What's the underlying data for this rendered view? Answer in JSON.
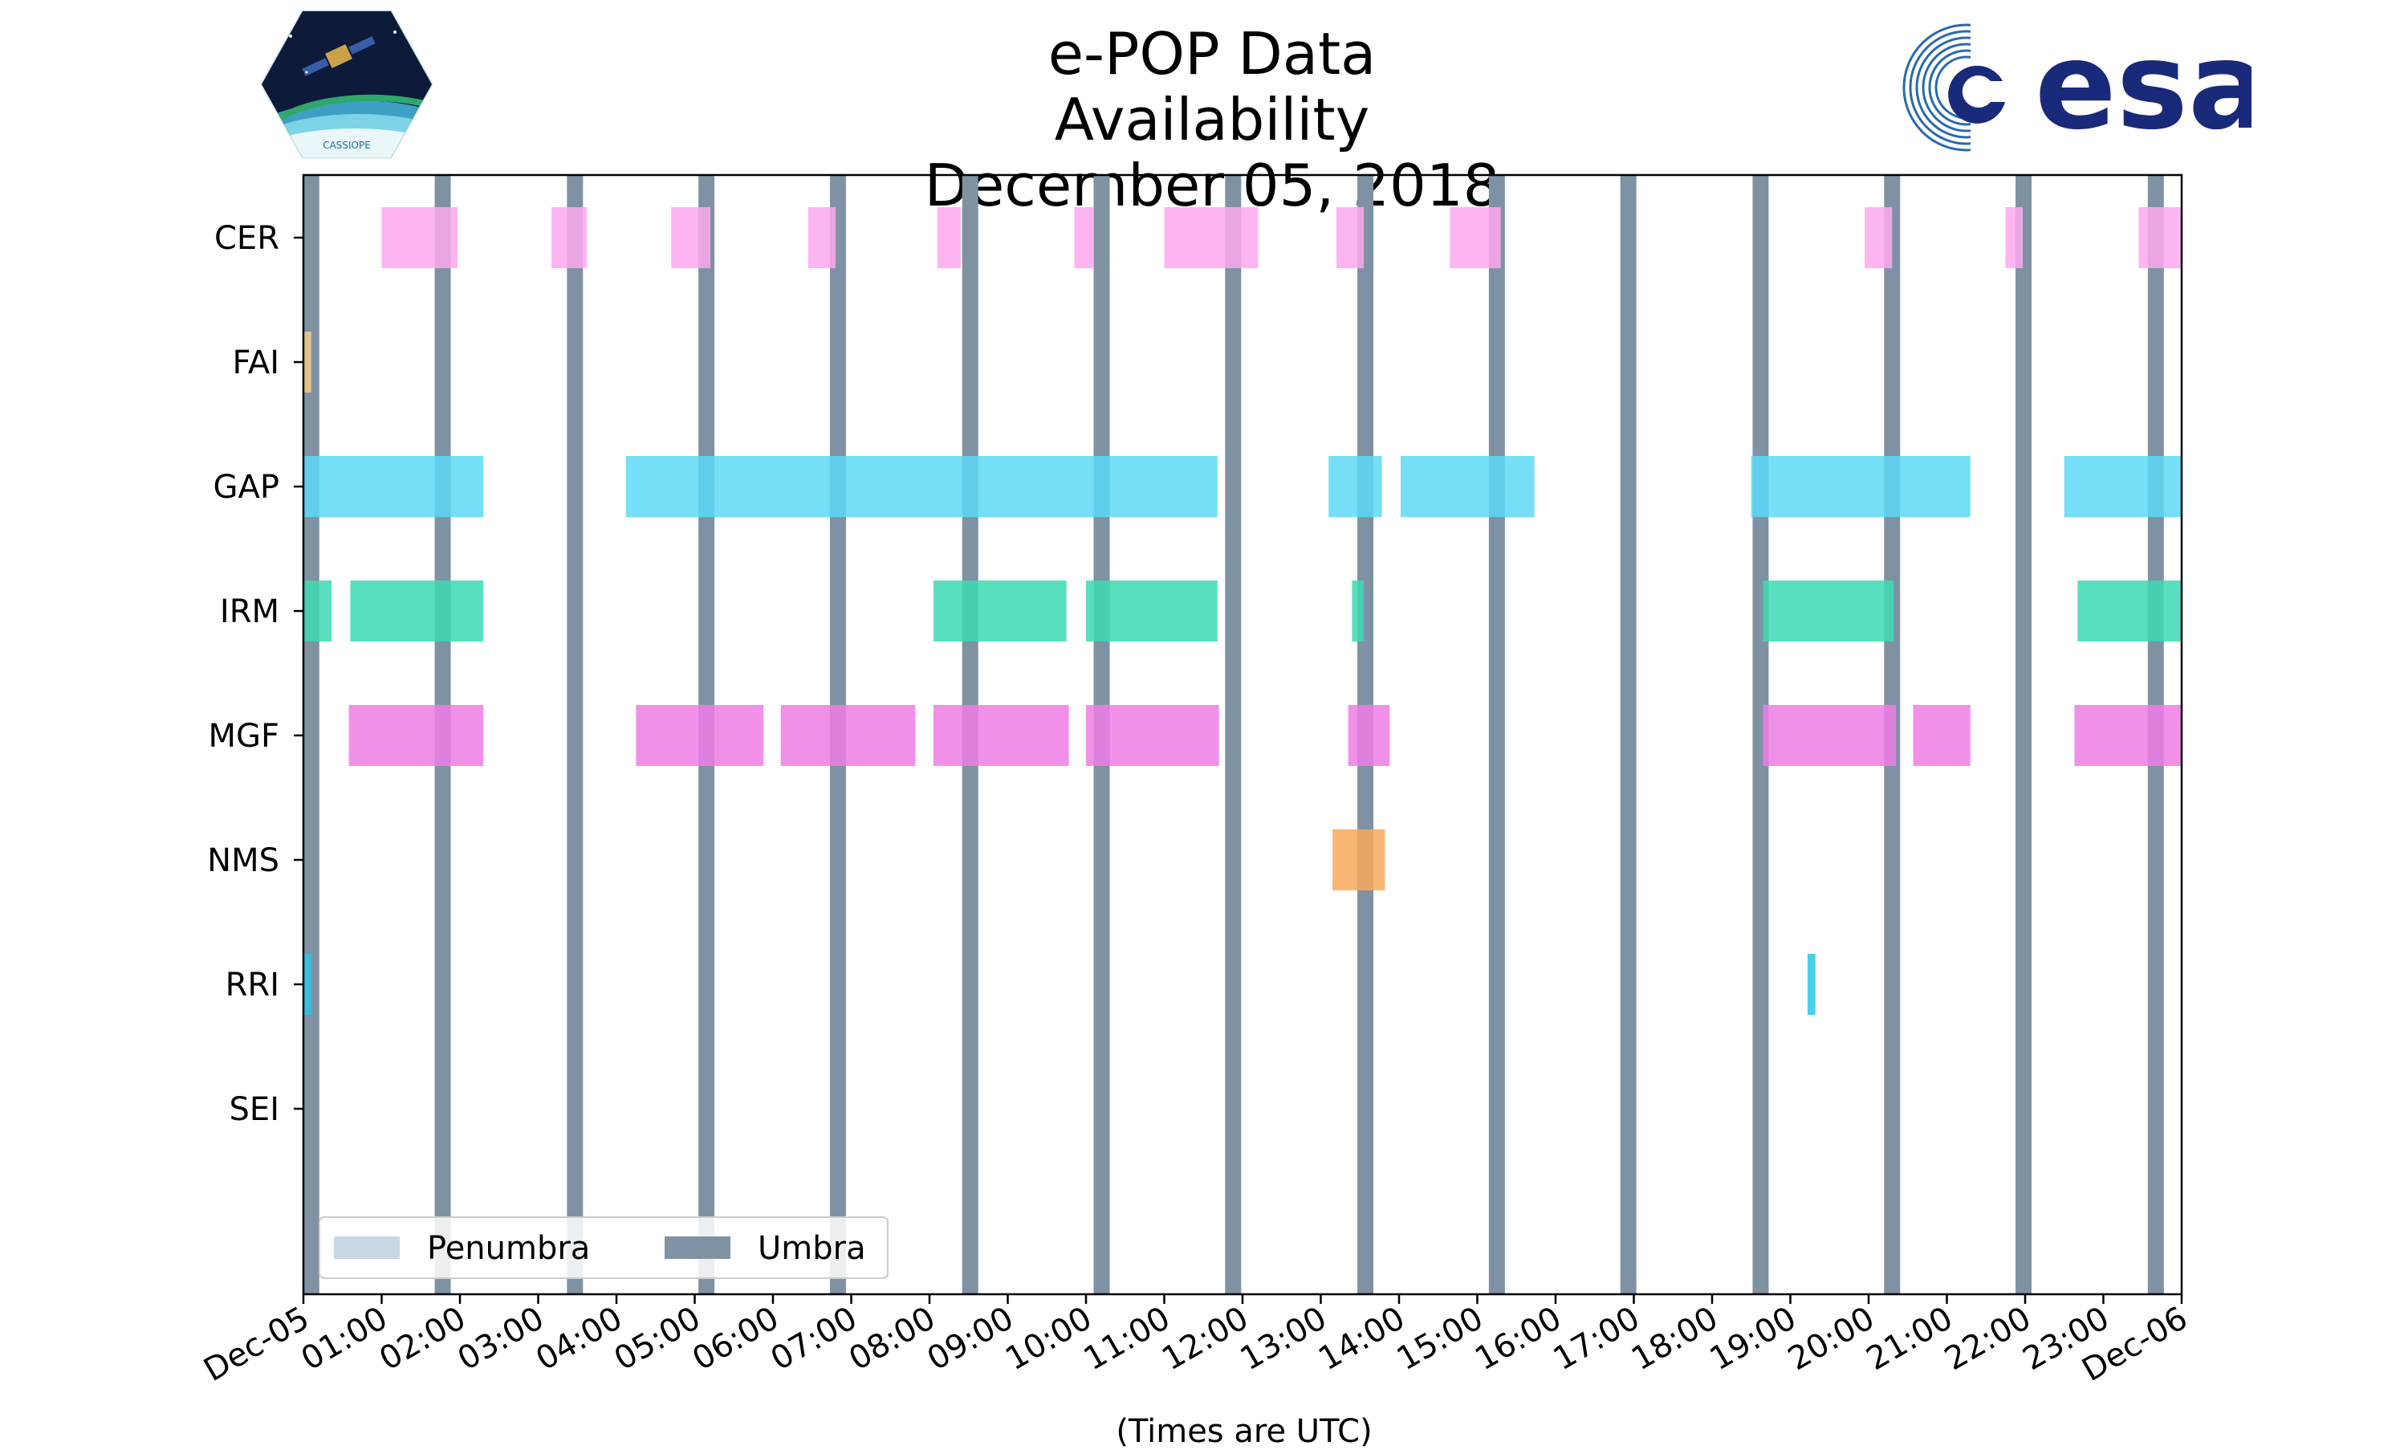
{
  "title_line1": "e-POP Data Availability",
  "title_line2": "December 05, 2018",
  "logos": {
    "left": "cassiope-mission-logo",
    "left_text": "CASSIOPE",
    "right": "esa-logo",
    "right_text": "esa"
  },
  "colors": {
    "umbra": "#7f92a4",
    "penumbra": "#c9d6e6",
    "CER": "#fda8ee",
    "FAI": "#f2cd8a",
    "GAP": "#5cd9f6",
    "IRM": "#3dd9b3",
    "MGF": "#ef7ce5",
    "NMS": "#f8a85c",
    "RRI": "#2bc4e8"
  },
  "chart_data": {
    "type": "timeline",
    "title": "e-POP Data Availability\nDecember 05, 2018",
    "xlabel": "(Times are UTC)",
    "x_unit": "hours since 2018-12-05 00:00 UTC",
    "xlim": [
      0,
      24
    ],
    "x_tick_labels": [
      "Dec-05",
      "01:00",
      "02:00",
      "03:00",
      "04:00",
      "05:00",
      "06:00",
      "07:00",
      "08:00",
      "09:00",
      "10:00",
      "11:00",
      "12:00",
      "13:00",
      "14:00",
      "15:00",
      "16:00",
      "17:00",
      "18:00",
      "19:00",
      "20:00",
      "21:00",
      "22:00",
      "23:00",
      "Dec-06"
    ],
    "instruments": [
      "CER",
      "FAI",
      "GAP",
      "IRM",
      "MGF",
      "NMS",
      "RRI",
      "SEI"
    ],
    "umbra_times": [
      0.1,
      1.78,
      3.47,
      5.15,
      6.83,
      8.52,
      10.2,
      11.88,
      13.57,
      15.25,
      16.93,
      18.62,
      20.3,
      21.98,
      23.67
    ],
    "series": [
      {
        "name": "CER",
        "intervals": [
          [
            1.0,
            1.97
          ],
          [
            3.17,
            3.62
          ],
          [
            4.7,
            5.2
          ],
          [
            6.45,
            6.8
          ],
          [
            8.1,
            8.4
          ],
          [
            9.85,
            10.1
          ],
          [
            11.0,
            12.2
          ],
          [
            13.2,
            13.55
          ],
          [
            14.65,
            15.3
          ],
          [
            19.95,
            20.3
          ],
          [
            21.75,
            21.97
          ],
          [
            23.45,
            24.0
          ]
        ]
      },
      {
        "name": "FAI",
        "intervals": [
          [
            0.0,
            0.1
          ]
        ]
      },
      {
        "name": "GAP",
        "intervals": [
          [
            0.0,
            2.3
          ],
          [
            4.12,
            11.68
          ],
          [
            13.1,
            13.78
          ],
          [
            14.02,
            15.73
          ],
          [
            18.5,
            21.3
          ],
          [
            22.5,
            24.0
          ]
        ]
      },
      {
        "name": "IRM",
        "intervals": [
          [
            0.0,
            0.36
          ],
          [
            0.6,
            2.3
          ],
          [
            8.05,
            9.75
          ],
          [
            10.0,
            11.68
          ],
          [
            13.4,
            13.55
          ],
          [
            18.65,
            20.32
          ],
          [
            22.67,
            24.0
          ]
        ]
      },
      {
        "name": "MGF",
        "intervals": [
          [
            0.58,
            2.3
          ],
          [
            4.25,
            5.88
          ],
          [
            6.1,
            7.82
          ],
          [
            8.05,
            9.78
          ],
          [
            10.0,
            11.7
          ],
          [
            13.35,
            13.88
          ],
          [
            18.65,
            20.35
          ],
          [
            20.57,
            21.3
          ],
          [
            22.63,
            24.0
          ]
        ]
      },
      {
        "name": "NMS",
        "intervals": [
          [
            13.15,
            13.82
          ]
        ]
      },
      {
        "name": "RRI",
        "intervals": [
          [
            0.0,
            0.1
          ],
          [
            19.22,
            19.32
          ]
        ]
      },
      {
        "name": "SEI",
        "intervals": []
      }
    ],
    "legend": {
      "position": "lower-left",
      "entries": [
        "Penumbra",
        "Umbra"
      ]
    },
    "grid": false
  }
}
